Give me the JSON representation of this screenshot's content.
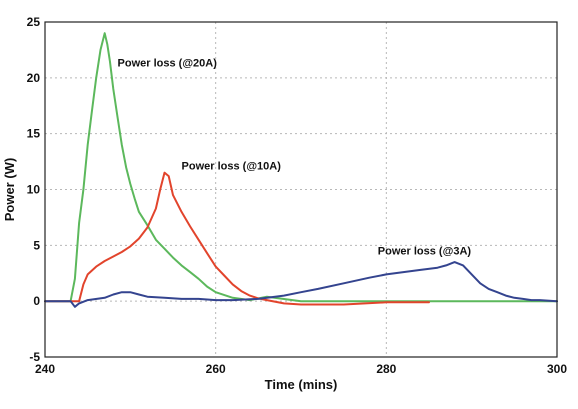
{
  "chart_data": {
    "type": "line",
    "title": "",
    "xlabel": "Time (mins)",
    "ylabel": "Power (W)",
    "xlim": [
      240,
      300
    ],
    "ylim": [
      -5,
      25
    ],
    "xticks": [
      240,
      260,
      280,
      300
    ],
    "yticks": [
      -5,
      0,
      5,
      10,
      15,
      20,
      25
    ],
    "grid": true,
    "series": [
      {
        "name": "Power loss (@20A)",
        "color": "#5cb85c",
        "x": [
          240,
          241,
          242,
          243,
          243.5,
          244,
          244.5,
          245,
          245.5,
          246,
          246.5,
          247,
          247.3,
          247.6,
          248,
          248.5,
          249,
          249.5,
          250,
          250.5,
          251,
          252,
          253,
          254,
          255,
          256,
          257,
          258,
          259,
          260,
          262,
          264,
          266,
          270,
          280,
          290,
          300
        ],
        "y": [
          0,
          0,
          0,
          0,
          2,
          7,
          10,
          14,
          17,
          20,
          22.5,
          24,
          23,
          21.5,
          19,
          16.5,
          14,
          12,
          10.5,
          9.2,
          8,
          6.8,
          5.5,
          4.7,
          3.9,
          3.2,
          2.6,
          2.0,
          1.3,
          0.8,
          0.3,
          0.1,
          0.4,
          0,
          0,
          0,
          0
        ]
      },
      {
        "name": "Power loss (@10A)",
        "color": "#e2442c",
        "x": [
          240,
          243,
          244,
          244.5,
          245,
          246,
          247,
          248,
          249,
          250,
          251,
          252,
          253,
          253.5,
          254,
          254.5,
          255,
          256,
          257,
          258,
          259,
          260,
          261,
          262,
          263,
          264,
          265,
          266,
          268,
          270,
          275,
          280,
          285
        ],
        "y": [
          0,
          0,
          0,
          1.5,
          2.4,
          3.1,
          3.6,
          4.0,
          4.4,
          4.9,
          5.6,
          6.6,
          8.3,
          10,
          11.5,
          11.2,
          9.5,
          8.0,
          6.7,
          5.5,
          4.3,
          3.1,
          2.3,
          1.5,
          0.9,
          0.5,
          0.25,
          0.1,
          -0.2,
          -0.3,
          -0.3,
          -0.1,
          -0.1
        ]
      },
      {
        "name": "Power loss (@3A)",
        "color": "#34448f",
        "x": [
          240,
          243,
          243.5,
          244,
          245,
          247,
          248,
          249,
          250,
          251,
          252,
          254,
          256,
          258,
          260,
          262,
          265,
          268,
          270,
          272,
          275,
          278,
          280,
          282,
          284,
          286,
          287,
          288,
          289,
          290,
          291,
          292,
          293,
          294,
          295,
          296,
          297,
          298,
          300
        ],
        "y": [
          0,
          0,
          -0.5,
          -0.2,
          0.1,
          0.3,
          0.6,
          0.8,
          0.8,
          0.6,
          0.4,
          0.3,
          0.2,
          0.2,
          0.1,
          0.1,
          0.2,
          0.5,
          0.8,
          1.1,
          1.6,
          2.1,
          2.4,
          2.6,
          2.8,
          3.0,
          3.2,
          3.5,
          3.2,
          2.4,
          1.6,
          1.1,
          0.8,
          0.5,
          0.3,
          0.2,
          0.1,
          0.1,
          0
        ]
      }
    ],
    "annotations": [
      {
        "text": "Power loss (@20A)",
        "x": 248.5,
        "y": 21
      },
      {
        "text": "Power loss (@10A)",
        "x": 256,
        "y": 11.8
      },
      {
        "text": "Power loss (@3A)",
        "x": 279,
        "y": 4.2
      }
    ]
  }
}
